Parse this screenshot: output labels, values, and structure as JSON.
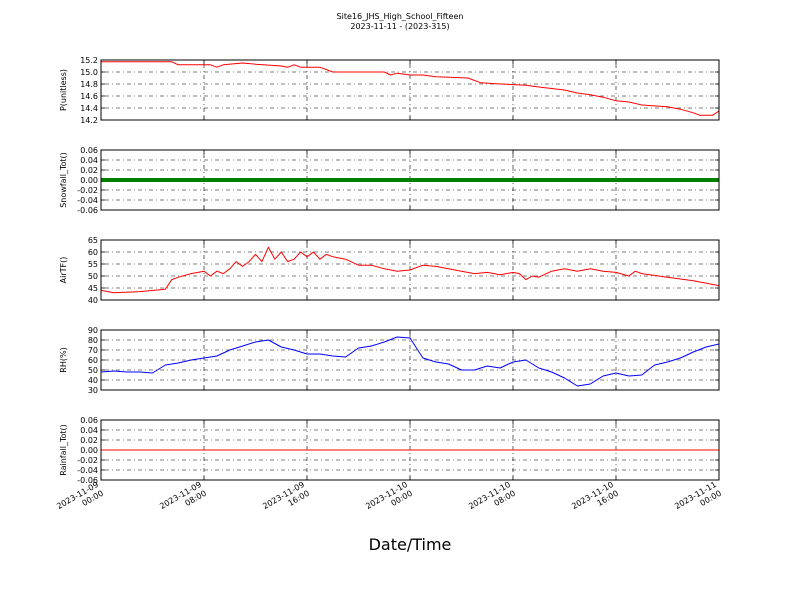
{
  "figure": {
    "title": "Site16_JHS_High_School_Fifteen",
    "subtitle": "2023-11-11 - (2023-315)",
    "xlabel": "Date/Time"
  },
  "chart_data": {
    "type": "line",
    "x_range": [
      "2023-11-09 00:00",
      "2023-11-11 00:00"
    ],
    "x_ticks": [
      {
        "line1": "2023-11-09",
        "line2": "00:00"
      },
      {
        "line1": "2023-11-09",
        "line2": "08:00"
      },
      {
        "line1": "2023-11-09",
        "line2": "16:00"
      },
      {
        "line1": "2023-11-10",
        "line2": "00:00"
      },
      {
        "line1": "2023-11-10",
        "line2": "08:00"
      },
      {
        "line1": "2023-11-10",
        "line2": "16:00"
      },
      {
        "line1": "2023-11-11",
        "line2": "00:00"
      }
    ],
    "grid": true,
    "panels": [
      {
        "ylabel": "P(unitless)",
        "ylim": [
          14.2,
          15.2
        ],
        "yticks": [
          "15.2",
          "15.0",
          "14.8",
          "14.6",
          "14.4",
          "14.2"
        ],
        "color": "#ff0000",
        "style": "line",
        "x": [
          "2023-11-09 00:00",
          "2023-11-09 02:00",
          "2023-11-09 05:30",
          "2023-11-09 06:00",
          "2023-11-09 08:30",
          "2023-11-09 09:00",
          "2023-11-09 09:30",
          "2023-11-09 11:00",
          "2023-11-09 12:00",
          "2023-11-09 14:00",
          "2023-11-09 14:30",
          "2023-11-09 15:00",
          "2023-11-09 15:30",
          "2023-11-09 17:00",
          "2023-11-09 18:00",
          "2023-11-09 20:00",
          "2023-11-09 22:00",
          "2023-11-09 22:30",
          "2023-11-09 23:00",
          "2023-11-10 00:00",
          "2023-11-10 01:00",
          "2023-11-10 02:00",
          "2023-11-10 04:30",
          "2023-11-10 05:30",
          "2023-11-10 07:00",
          "2023-11-10 09:00",
          "2023-11-10 10:00",
          "2023-11-10 12:00",
          "2023-11-10 13:00",
          "2023-11-10 14:00",
          "2023-11-10 15:00",
          "2023-11-10 16:00",
          "2023-11-10 17:00",
          "2023-11-10 18:00",
          "2023-11-10 20:00",
          "2023-11-10 21:00",
          "2023-11-10 22:00",
          "2023-11-10 22:30",
          "2023-11-10 23:30",
          "2023-11-11 00:00"
        ],
        "y": [
          15.17,
          15.17,
          15.17,
          15.12,
          15.12,
          15.08,
          15.12,
          15.15,
          15.13,
          15.1,
          15.08,
          15.12,
          15.08,
          15.08,
          15.0,
          15.0,
          15.0,
          14.95,
          14.98,
          14.95,
          14.95,
          14.92,
          14.9,
          14.82,
          14.8,
          14.78,
          14.75,
          14.7,
          14.65,
          14.62,
          14.58,
          14.52,
          14.5,
          14.45,
          14.42,
          14.38,
          14.32,
          14.28,
          14.28,
          14.35
        ]
      },
      {
        "ylabel": "Snowfall_Tot()",
        "ylim": [
          -0.06,
          0.06
        ],
        "yticks": [
          "0.06",
          "0.04",
          "0.02",
          "0.00",
          "-0.02",
          "-0.04",
          "-0.06"
        ],
        "color": "#008000",
        "style": "thick",
        "x": [
          "2023-11-09 00:00",
          "2023-11-11 00:00"
        ],
        "y": [
          0.0,
          0.0
        ]
      },
      {
        "ylabel": "AirTF()",
        "ylim": [
          40,
          65
        ],
        "yticks": [
          "65",
          "60",
          "55",
          "50",
          "45",
          "40"
        ],
        "color": "#ff0000",
        "style": "line",
        "x": [
          "2023-11-09 00:00",
          "2023-11-09 01:00",
          "2023-11-09 03:00",
          "2023-11-09 05:00",
          "2023-11-09 05:30",
          "2023-11-09 06:00",
          "2023-11-09 07:00",
          "2023-11-09 08:00",
          "2023-11-09 08:30",
          "2023-11-09 09:00",
          "2023-11-09 09:30",
          "2023-11-09 10:00",
          "2023-11-09 10:30",
          "2023-11-09 11:00",
          "2023-11-09 11:30",
          "2023-11-09 12:00",
          "2023-11-09 12:30",
          "2023-11-09 13:00",
          "2023-11-09 13:30",
          "2023-11-09 14:00",
          "2023-11-09 14:30",
          "2023-11-09 15:00",
          "2023-11-09 15:30",
          "2023-11-09 16:00",
          "2023-11-09 16:30",
          "2023-11-09 17:00",
          "2023-11-09 17:30",
          "2023-11-09 18:00",
          "2023-11-09 19:00",
          "2023-11-09 20:00",
          "2023-11-09 21:00",
          "2023-11-09 22:00",
          "2023-11-09 23:00",
          "2023-11-10 00:00",
          "2023-11-10 01:00",
          "2023-11-10 02:00",
          "2023-11-10 04:00",
          "2023-11-10 05:00",
          "2023-11-10 06:00",
          "2023-11-10 07:00",
          "2023-11-10 08:00",
          "2023-11-10 08:30",
          "2023-11-10 09:00",
          "2023-11-10 09:30",
          "2023-11-10 10:00",
          "2023-11-10 11:00",
          "2023-11-10 12:00",
          "2023-11-10 13:00",
          "2023-11-10 14:00",
          "2023-11-10 15:00",
          "2023-11-10 16:00",
          "2023-11-10 17:00",
          "2023-11-10 17:30",
          "2023-11-10 18:00",
          "2023-11-10 20:00",
          "2023-11-10 22:00",
          "2023-11-11 00:00"
        ],
        "y": [
          44,
          43,
          43.5,
          44.5,
          48.5,
          49.5,
          51,
          52,
          50,
          52,
          51,
          53,
          56,
          54,
          56,
          59,
          56,
          62,
          57,
          60,
          56,
          57,
          60,
          58,
          60,
          57,
          59,
          58,
          57,
          54.5,
          54.5,
          53,
          52,
          52.5,
          54.5,
          54,
          52,
          51,
          51.5,
          50.5,
          51.5,
          51,
          48.5,
          50,
          49.5,
          52,
          53,
          52,
          53,
          52,
          51.5,
          50,
          52,
          51,
          49.5,
          48,
          46
        ]
      },
      {
        "ylabel": "RH(%)",
        "ylim": [
          30,
          90
        ],
        "yticks": [
          "90",
          "80",
          "70",
          "60",
          "50",
          "40",
          "30"
        ],
        "color": "#0000ff",
        "style": "line",
        "x": [
          "2023-11-09 00:00",
          "2023-11-09 01:00",
          "2023-11-09 02:00",
          "2023-11-09 03:00",
          "2023-11-09 04:00",
          "2023-11-09 05:00",
          "2023-11-09 06:00",
          "2023-11-09 07:00",
          "2023-11-09 08:00",
          "2023-11-09 09:00",
          "2023-11-09 10:00",
          "2023-11-09 11:00",
          "2023-11-09 12:00",
          "2023-11-09 13:00",
          "2023-11-09 14:00",
          "2023-11-09 15:00",
          "2023-11-09 16:00",
          "2023-11-09 17:00",
          "2023-11-09 18:00",
          "2023-11-09 19:00",
          "2023-11-09 20:00",
          "2023-11-09 21:00",
          "2023-11-09 22:00",
          "2023-11-09 23:00",
          "2023-11-10 00:00",
          "2023-11-10 01:00",
          "2023-11-10 02:00",
          "2023-11-10 03:00",
          "2023-11-10 04:00",
          "2023-11-10 05:00",
          "2023-11-10 06:00",
          "2023-11-10 07:00",
          "2023-11-10 08:00",
          "2023-11-10 09:00",
          "2023-11-10 10:00",
          "2023-11-10 11:00",
          "2023-11-10 12:00",
          "2023-11-10 13:00",
          "2023-11-10 14:00",
          "2023-11-10 15:00",
          "2023-11-10 16:00",
          "2023-11-10 17:00",
          "2023-11-10 18:00",
          "2023-11-10 19:00",
          "2023-11-10 20:00",
          "2023-11-10 21:00",
          "2023-11-10 22:00",
          "2023-11-10 23:00",
          "2023-11-11 00:00"
        ],
        "y": [
          48,
          49,
          48,
          48,
          47,
          55,
          57,
          60,
          62,
          64,
          70,
          74,
          78,
          80,
          73,
          70,
          66,
          66,
          64,
          63,
          72,
          74,
          78,
          83,
          82,
          62,
          58,
          56,
          50,
          50,
          54,
          52,
          58,
          60,
          52,
          48,
          42,
          34,
          36,
          44,
          47,
          44,
          45,
          55,
          58,
          62,
          68,
          73,
          76
        ]
      },
      {
        "ylabel": "Rainfall_Tot()",
        "ylim": [
          -0.06,
          0.06
        ],
        "yticks": [
          "0.06",
          "0.04",
          "0.02",
          "0.00",
          "-0.02",
          "-0.04",
          "-0.06"
        ],
        "color": "#ff0000",
        "style": "line",
        "x": [
          "2023-11-09 00:00",
          "2023-11-11 00:00"
        ],
        "y": [
          0.0,
          0.0
        ]
      }
    ]
  }
}
